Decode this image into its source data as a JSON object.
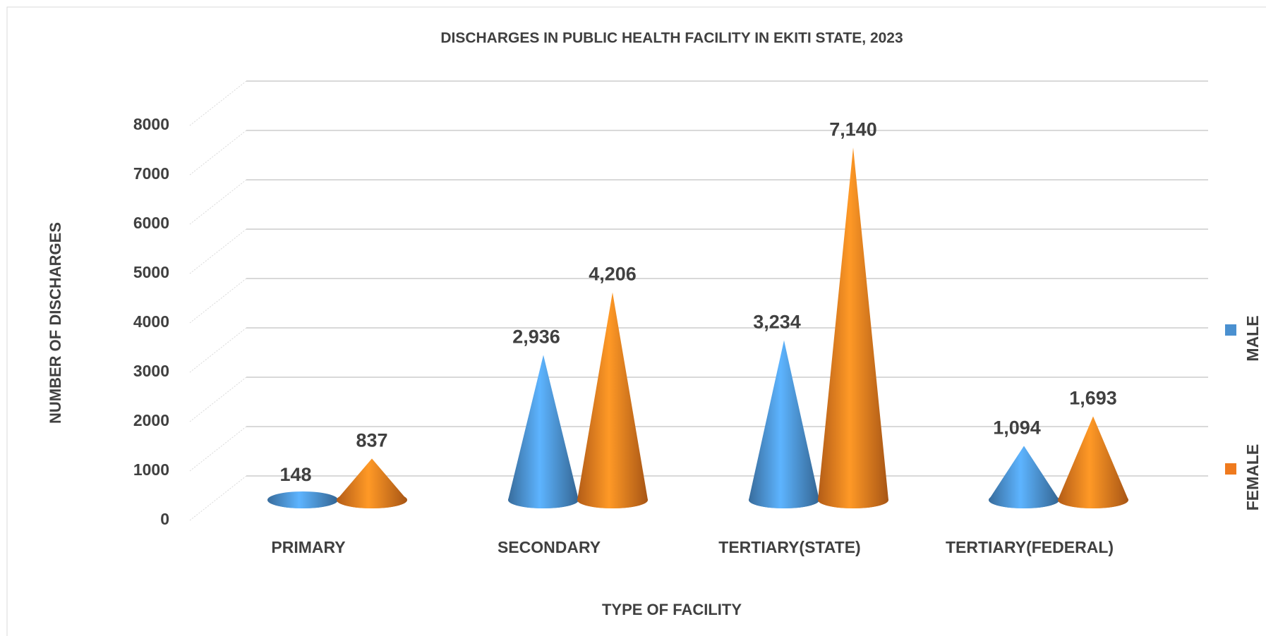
{
  "chart_data": {
    "type": "bar",
    "shape": "cone",
    "title": "DISCHARGES IN PUBLIC HEALTH FACILITY IN EKITI STATE, 2023",
    "x_label": "TYPE OF FACILITY",
    "y_label": "NUMBER OF DISCHARGES",
    "categories": [
      "PRIMARY",
      "SECONDARY",
      "TERTIARY(STATE)",
      "TERTIARY(FEDERAL)"
    ],
    "series": [
      {
        "name": "MALE",
        "color": "#4a90d0",
        "values": [
          148,
          2936,
          3234,
          1094
        ],
        "value_labels": [
          "148",
          "2,936",
          "3,234",
          "1,094"
        ]
      },
      {
        "name": "FEMALE",
        "color": "#ef7a1e",
        "values": [
          837,
          4206,
          7140,
          1693
        ],
        "value_labels": [
          "837",
          "4,206",
          "7,140",
          "1,693"
        ]
      }
    ],
    "ylim": [
      0,
      8000
    ],
    "yticks": [
      0,
      1000,
      2000,
      3000,
      4000,
      5000,
      6000,
      7000,
      8000
    ],
    "grid": true,
    "legend": "right"
  }
}
